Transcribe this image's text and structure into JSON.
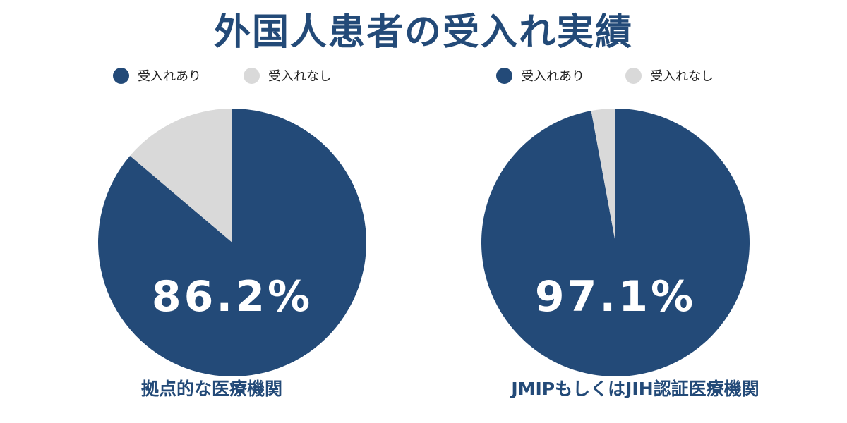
{
  "title": "外国人患者の受入れ実績",
  "colors": {
    "accepted": "#234a78",
    "not_accepted": "#d9d9d9",
    "center_text": "#ffffff",
    "caption_text": "#234a78",
    "legend_text": "#222222"
  },
  "legend": {
    "accepted": "受入れあり",
    "not_accepted": "受入れなし"
  },
  "chart_data": [
    {
      "type": "pie",
      "title": "拠点的な医療機関",
      "center_label": "86.2%",
      "slices": [
        {
          "label": "受入れあり",
          "value": 86.2,
          "color": "#234a78"
        },
        {
          "label": "受入れなし",
          "value": 13.8,
          "color": "#d9d9d9"
        }
      ],
      "legend_placement": "top"
    },
    {
      "type": "pie",
      "title": "JMIPもしくはJIH認証医療機関",
      "center_label": "97.1%",
      "slices": [
        {
          "label": "受入れあり",
          "value": 97.1,
          "color": "#234a78"
        },
        {
          "label": "受入れなし",
          "value": 2.9,
          "color": "#d9d9d9"
        }
      ],
      "legend_placement": "top"
    }
  ]
}
